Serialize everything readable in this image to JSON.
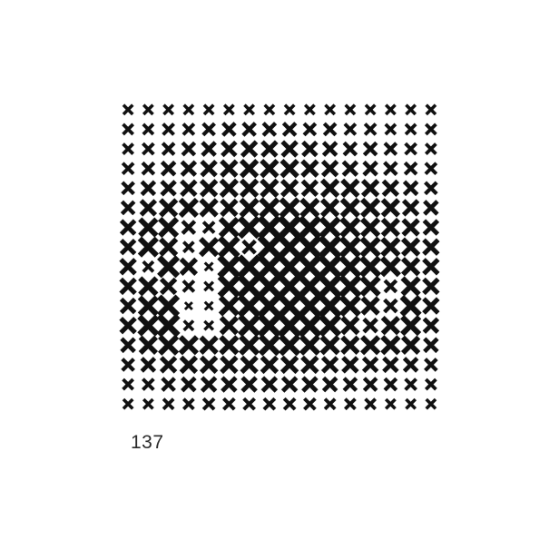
{
  "figure": {
    "caption": "137",
    "ink_color": "#111111",
    "background_color": "#ffffff",
    "mark_shape": "cross",
    "grid": {
      "rows": 16,
      "cols": 16,
      "intensity": [
        [
          0.25,
          0.25,
          0.25,
          0.25,
          0.25,
          0.25,
          0.25,
          0.25,
          0.25,
          0.25,
          0.25,
          0.25,
          0.25,
          0.25,
          0.25,
          0.25
        ],
        [
          0.3,
          0.3,
          0.35,
          0.35,
          0.4,
          0.45,
          0.45,
          0.45,
          0.45,
          0.4,
          0.4,
          0.35,
          0.35,
          0.3,
          0.3,
          0.3
        ],
        [
          0.3,
          0.35,
          0.4,
          0.45,
          0.5,
          0.55,
          0.6,
          0.6,
          0.6,
          0.55,
          0.5,
          0.45,
          0.45,
          0.4,
          0.35,
          0.3
        ],
        [
          0.35,
          0.4,
          0.5,
          0.55,
          0.6,
          0.65,
          0.7,
          0.7,
          0.7,
          0.65,
          0.6,
          0.55,
          0.5,
          0.45,
          0.4,
          0.35
        ],
        [
          0.4,
          0.5,
          0.55,
          0.6,
          0.65,
          0.7,
          0.7,
          0.7,
          0.65,
          0.6,
          0.7,
          0.7,
          0.65,
          0.6,
          0.5,
          0.4
        ],
        [
          0.45,
          0.6,
          0.7,
          0.75,
          0.7,
          0.65,
          0.75,
          0.8,
          0.8,
          0.75,
          0.7,
          0.75,
          0.75,
          0.7,
          0.6,
          0.5
        ],
        [
          0.55,
          0.75,
          0.8,
          0.45,
          0.35,
          0.8,
          0.92,
          0.98,
          0.99,
          0.95,
          0.85,
          0.8,
          0.75,
          0.7,
          0.65,
          0.55
        ],
        [
          0.55,
          0.8,
          0.7,
          0.3,
          0.75,
          0.88,
          0.45,
          0.99,
          1.0,
          0.99,
          0.95,
          0.85,
          0.8,
          0.75,
          0.7,
          0.6
        ],
        [
          0.6,
          0.3,
          0.9,
          0.65,
          0.15,
          0.95,
          0.99,
          1.0,
          1.0,
          1.0,
          0.97,
          0.9,
          0.85,
          0.8,
          0.7,
          0.6
        ],
        [
          0.6,
          0.75,
          0.6,
          0.35,
          0.2,
          0.92,
          0.99,
          1.0,
          1.0,
          1.0,
          0.98,
          0.92,
          0.8,
          0.4,
          0.75,
          0.6
        ],
        [
          0.55,
          0.8,
          0.9,
          0.1,
          0.15,
          0.8,
          0.95,
          1.0,
          1.0,
          1.0,
          0.98,
          0.85,
          0.7,
          0.45,
          0.85,
          0.6
        ],
        [
          0.6,
          0.85,
          0.95,
          0.25,
          0.2,
          0.7,
          0.9,
          0.97,
          0.99,
          0.98,
          0.9,
          0.7,
          0.5,
          0.7,
          0.8,
          0.55
        ],
        [
          0.5,
          0.7,
          0.8,
          0.75,
          0.7,
          0.75,
          0.8,
          0.85,
          0.85,
          0.8,
          0.75,
          0.7,
          0.75,
          0.75,
          0.7,
          0.5
        ],
        [
          0.4,
          0.5,
          0.6,
          0.65,
          0.65,
          0.65,
          0.65,
          0.65,
          0.65,
          0.65,
          0.6,
          0.6,
          0.55,
          0.55,
          0.5,
          0.4
        ],
        [
          0.3,
          0.35,
          0.45,
          0.5,
          0.55,
          0.55,
          0.55,
          0.55,
          0.55,
          0.55,
          0.5,
          0.45,
          0.45,
          0.4,
          0.35,
          0.3
        ],
        [
          0.25,
          0.25,
          0.3,
          0.3,
          0.35,
          0.35,
          0.35,
          0.35,
          0.35,
          0.35,
          0.3,
          0.3,
          0.3,
          0.25,
          0.25,
          0.25
        ]
      ]
    }
  }
}
